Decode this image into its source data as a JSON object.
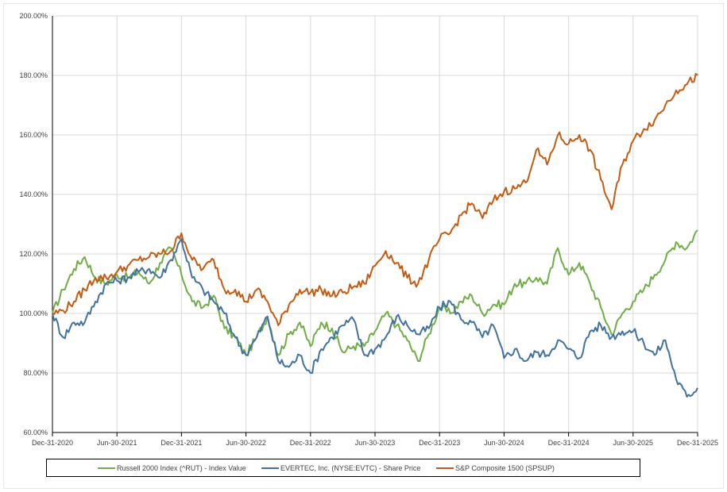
{
  "chart_data": {
    "type": "line",
    "title": "",
    "xlabel": "",
    "ylabel": "",
    "ylim": [
      60,
      200
    ],
    "yticks": [
      "60.00%",
      "80.00%",
      "100.00%",
      "120.00%",
      "140.00%",
      "160.00%",
      "180.00%",
      "200.00%"
    ],
    "xticks": [
      "Dec-31-2020",
      "Jun-30-2021",
      "Dec-31-2021",
      "Jun-30-2022",
      "Dec-31-2022",
      "Jun-30-2023",
      "Dec-31-2023",
      "Jun-30-2024",
      "Dec-31-2024",
      "Jun-30-2025",
      "Dec-31-2025"
    ],
    "x_frequency": "monthly, Dec-2020 to Dec-2025",
    "grid": true,
    "legend_position": "bottom",
    "series": [
      {
        "name": "Russell 2000 Index (^RUT) - Index Value",
        "color": "#70ad47",
        "values": [
          100,
          108,
          115,
          119,
          112,
          110,
          113,
          112,
          114,
          110,
          117,
          122,
          113,
          104,
          102,
          106,
          95,
          92,
          86,
          92,
          99,
          86,
          93,
          97,
          89,
          97,
          95,
          87,
          89,
          89,
          94,
          100,
          96,
          91,
          84,
          93,
          102,
          100,
          104,
          106,
          100,
          103,
          103,
          110,
          110,
          112,
          110,
          122,
          113,
          117,
          110,
          102,
          93,
          100,
          104,
          108,
          113,
          118,
          124,
          122,
          128
        ]
      },
      {
        "name": "EVERTEC, Inc. (NYSE:EVTC) - Share Price",
        "color": "#41729f",
        "values": [
          100,
          92,
          97,
          97,
          104,
          110,
          111,
          112,
          114,
          115,
          112,
          118,
          125,
          112,
          108,
          104,
          100,
          92,
          86,
          92,
          99,
          84,
          82,
          86,
          80,
          88,
          92,
          96,
          98,
          86,
          88,
          92,
          99,
          96,
          93,
          95,
          102,
          104,
          98,
          97,
          92,
          96,
          85,
          88,
          84,
          87,
          86,
          91,
          88,
          85,
          94,
          96,
          92,
          94,
          94,
          90,
          86,
          91,
          78,
          72,
          75
        ]
      },
      {
        "name": "S&P Composite 1500 (SPSUP)",
        "color": "#c55a11",
        "values": [
          100,
          101,
          104,
          108,
          112,
          112,
          114,
          116,
          118,
          119,
          120,
          121,
          127,
          118,
          115,
          118,
          108,
          108,
          104,
          108,
          104,
          96,
          103,
          108,
          107,
          108,
          106,
          107,
          109,
          110,
          116,
          121,
          117,
          112,
          110,
          118,
          125,
          127,
          133,
          137,
          132,
          138,
          141,
          142,
          144,
          155,
          150,
          160,
          157,
          160,
          155,
          145,
          135,
          150,
          158,
          162,
          165,
          170,
          175,
          177,
          180
        ]
      }
    ]
  }
}
